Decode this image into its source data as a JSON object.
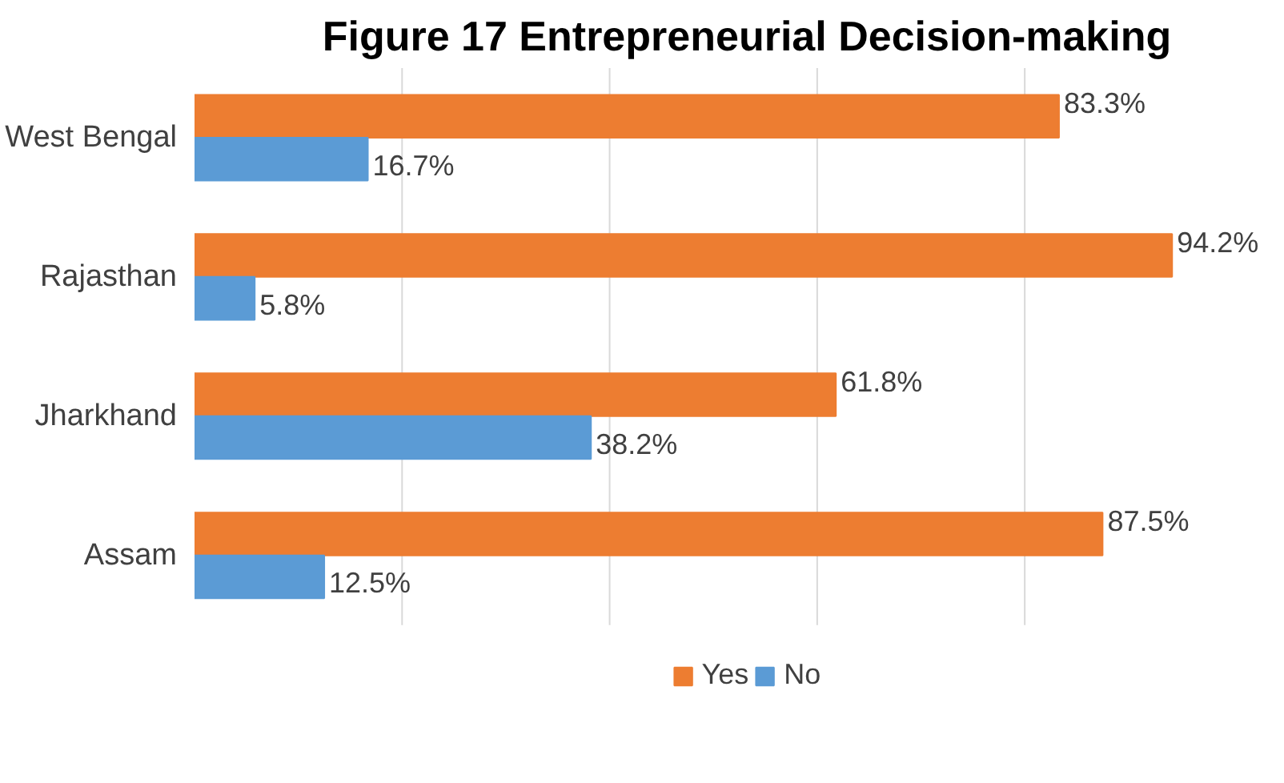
{
  "chart_data": {
    "type": "bar",
    "orientation": "horizontal",
    "title": "Figure 17 Entrepreneurial Decision-making",
    "categories": [
      "West Bengal",
      "Rajasthan",
      "Jharkhand",
      "Assam"
    ],
    "series": [
      {
        "name": "Yes",
        "color": "#ed7d31",
        "values": [
          83.3,
          94.2,
          61.8,
          87.5
        ],
        "value_labels": [
          "83.3%",
          "94.2%",
          "61.8%",
          "87.5%"
        ]
      },
      {
        "name": "No",
        "color": "#5b9bd5",
        "values": [
          16.7,
          5.8,
          38.2,
          12.5
        ],
        "value_labels": [
          "16.7%",
          "5.8%",
          "38.2%",
          "12.5%"
        ]
      }
    ],
    "xticks": [
      {
        "value": 20,
        "label": null
      },
      {
        "value": 40,
        "label": null
      },
      {
        "value": 60,
        "label": null
      },
      {
        "value": 80,
        "label": null
      }
    ],
    "tick_labels": "y",
    "grid": "x",
    "legend": "bottom"
  }
}
